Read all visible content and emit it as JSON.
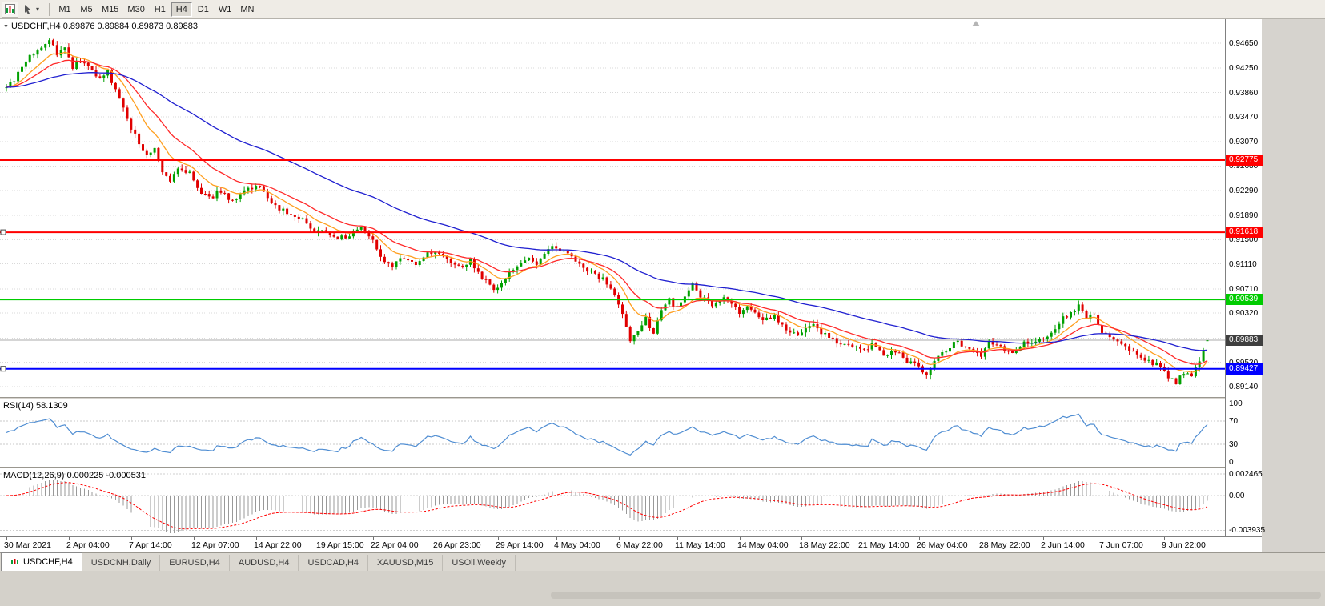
{
  "icons": {
    "dropdown_caret": "▾",
    "title_marker": "▼"
  },
  "toolbar": {
    "timeframes": [
      "M1",
      "M5",
      "M15",
      "M30",
      "H1",
      "H4",
      "D1",
      "W1",
      "MN"
    ],
    "active_timeframe": "H4"
  },
  "chart": {
    "title": "USDCHF,H4 0.89876 0.89884 0.89873 0.89883",
    "symbol": "USDCHF",
    "period": "H4",
    "open": "0.89876",
    "high": "0.89884",
    "low": "0.89873",
    "close": "0.89883",
    "current_price": "0.89883",
    "price_axis_labels": [
      "0.94650",
      "0.94250",
      "0.93860",
      "0.93470",
      "0.93070",
      "0.92680",
      "0.92290",
      "0.91890",
      "0.91500",
      "0.91110",
      "0.90710",
      "0.90320",
      "0.89920",
      "0.89530",
      "0.89140"
    ],
    "levels": [
      {
        "price": 0.92775,
        "label": "0.92775",
        "color": "#ff0000",
        "selected": false
      },
      {
        "price": 0.91618,
        "label": "0.91618",
        "color": "#ff0000",
        "selected": true
      },
      {
        "price": 0.90539,
        "label": "0.90539",
        "color": "#00cc00",
        "selected": false
      },
      {
        "price": 0.89427,
        "label": "0.89427",
        "color": "#0000ff",
        "selected": true
      }
    ]
  },
  "rsi_panel": {
    "label": "RSI(14) 58.1309",
    "value": 58.1309,
    "scale_labels": [
      "100",
      "70",
      "30",
      "0"
    ],
    "guides": [
      70,
      30
    ],
    "line_color": "#4f8dd2"
  },
  "macd_panel": {
    "label": "MACD(12,26,9) 0.000225 -0.000531",
    "values": [
      0.000225,
      -0.000531
    ],
    "scale_labels": [
      "0.002465",
      "0.00",
      "-0.003935"
    ],
    "histogram_color": "#999999",
    "signal_color": "#ff0000"
  },
  "tabs": [
    {
      "label": "USDCHF,H4",
      "active": true
    },
    {
      "label": "USDCNH,Daily",
      "active": false
    },
    {
      "label": "EURUSD,H4",
      "active": false
    },
    {
      "label": "AUDUSD,H4",
      "active": false
    },
    {
      "label": "USDCAD,H4",
      "active": false
    },
    {
      "label": "XAUUSD,M15",
      "active": false
    },
    {
      "label": "USOil,Weekly",
      "active": false
    }
  ],
  "chart_data": {
    "type": "candlestick",
    "symbol": "USDCHF",
    "timeframe": "H4",
    "ylim": [
      0.8901,
      0.9504
    ],
    "candle_count": 309,
    "up_color": "#00a000",
    "down_color": "#e00000",
    "last_candle": {
      "open": 0.89876,
      "high": 0.89884,
      "low": 0.89873,
      "close": 0.89883
    },
    "moving_averages": [
      {
        "period": 10,
        "color": "#ff9f1f"
      },
      {
        "period": 20,
        "color": "#ff2a2a"
      },
      {
        "period": 60,
        "color": "#1f1fd0"
      }
    ],
    "horizontal_levels": [
      0.92775,
      0.91618,
      0.90539,
      0.89427
    ],
    "time_ticks": [
      [
        0,
        "30 Mar 2021"
      ],
      [
        16,
        "2 Apr 04:00"
      ],
      [
        32,
        "7 Apr 14:00"
      ],
      [
        48,
        "12 Apr 07:00"
      ],
      [
        64,
        "14 Apr 22:00"
      ],
      [
        80,
        "19 Apr 15:00"
      ],
      [
        94,
        "22 Apr 04:00"
      ],
      [
        110,
        "26 Apr 23:00"
      ],
      [
        126,
        "29 Apr 14:00"
      ],
      [
        141,
        "4 May 04:00"
      ],
      [
        157,
        "6 May 22:00"
      ],
      [
        172,
        "11 May 14:00"
      ],
      [
        188,
        "14 May 04:00"
      ],
      [
        204,
        "18 May 22:00"
      ],
      [
        219,
        "21 May 14:00"
      ],
      [
        234,
        "26 May 04:00"
      ],
      [
        250,
        "28 May 22:00"
      ],
      [
        266,
        "2 Jun 14:00"
      ],
      [
        281,
        "7 Jun 07:00"
      ],
      [
        297,
        "9 Jun 22:00"
      ]
    ],
    "anchor_closes": [
      [
        0,
        0.9393
      ],
      [
        3,
        0.9415
      ],
      [
        6,
        0.9442
      ],
      [
        9,
        0.9461
      ],
      [
        11,
        0.947
      ],
      [
        13,
        0.9448
      ],
      [
        15,
        0.946
      ],
      [
        17,
        0.9428
      ],
      [
        20,
        0.9438
      ],
      [
        23,
        0.941
      ],
      [
        26,
        0.942
      ],
      [
        29,
        0.9372
      ],
      [
        32,
        0.933
      ],
      [
        34,
        0.9305
      ],
      [
        36,
        0.9282
      ],
      [
        38,
        0.9295
      ],
      [
        40,
        0.9258
      ],
      [
        42,
        0.9242
      ],
      [
        44,
        0.9268
      ],
      [
        47,
        0.9255
      ],
      [
        49,
        0.9232
      ],
      [
        52,
        0.9217
      ],
      [
        55,
        0.9228
      ],
      [
        58,
        0.921
      ],
      [
        61,
        0.9225
      ],
      [
        64,
        0.924
      ],
      [
        67,
        0.9216
      ],
      [
        70,
        0.92
      ],
      [
        73,
        0.9188
      ],
      [
        76,
        0.918
      ],
      [
        79,
        0.9162
      ],
      [
        82,
        0.9165
      ],
      [
        85,
        0.9152
      ],
      [
        88,
        0.9158
      ],
      [
        91,
        0.9166
      ],
      [
        94,
        0.9152
      ],
      [
        96,
        0.9125
      ],
      [
        99,
        0.9105
      ],
      [
        102,
        0.9122
      ],
      [
        105,
        0.911
      ],
      [
        108,
        0.9128
      ],
      [
        110,
        0.9132
      ],
      [
        113,
        0.912
      ],
      [
        116,
        0.9105
      ],
      [
        119,
        0.9115
      ],
      [
        122,
        0.9088
      ],
      [
        125,
        0.907
      ],
      [
        127,
        0.9082
      ],
      [
        130,
        0.9105
      ],
      [
        133,
        0.912
      ],
      [
        136,
        0.911
      ],
      [
        139,
        0.9132
      ],
      [
        141,
        0.914
      ],
      [
        144,
        0.9126
      ],
      [
        147,
        0.9112
      ],
      [
        150,
        0.9096
      ],
      [
        153,
        0.9086
      ],
      [
        156,
        0.9064
      ],
      [
        158,
        0.9028
      ],
      [
        160,
        0.899
      ],
      [
        162,
        0.9006
      ],
      [
        164,
        0.9022
      ],
      [
        166,
        0.9002
      ],
      [
        168,
        0.9038
      ],
      [
        170,
        0.9052
      ],
      [
        172,
        0.9042
      ],
      [
        174,
        0.9062
      ],
      [
        176,
        0.9076
      ],
      [
        178,
        0.9058
      ],
      [
        181,
        0.9046
      ],
      [
        184,
        0.9056
      ],
      [
        188,
        0.9035
      ],
      [
        191,
        0.9042
      ],
      [
        194,
        0.902
      ],
      [
        197,
        0.9026
      ],
      [
        200,
        0.9006
      ],
      [
        204,
        0.8998
      ],
      [
        207,
        0.9014
      ],
      [
        210,
        0.8996
      ],
      [
        213,
        0.8986
      ],
      [
        216,
        0.8978
      ],
      [
        219,
        0.8972
      ],
      [
        222,
        0.8981
      ],
      [
        225,
        0.8966
      ],
      [
        228,
        0.8972
      ],
      [
        231,
        0.8956
      ],
      [
        234,
        0.8946
      ],
      [
        236,
        0.8932
      ],
      [
        238,
        0.8958
      ],
      [
        241,
        0.8972
      ],
      [
        244,
        0.8986
      ],
      [
        247,
        0.8972
      ],
      [
        250,
        0.8966
      ],
      [
        252,
        0.8988
      ],
      [
        255,
        0.8978
      ],
      [
        258,
        0.897
      ],
      [
        261,
        0.8982
      ],
      [
        264,
        0.899
      ],
      [
        267,
        0.8996
      ],
      [
        270,
        0.9018
      ],
      [
        273,
        0.9035
      ],
      [
        275,
        0.9042
      ],
      [
        277,
        0.9022
      ],
      [
        279,
        0.9032
      ],
      [
        281,
        0.9002
      ],
      [
        284,
        0.8986
      ],
      [
        287,
        0.8976
      ],
      [
        290,
        0.8968
      ],
      [
        293,
        0.8956
      ],
      [
        296,
        0.8946
      ],
      [
        298,
        0.8928
      ],
      [
        300,
        0.8922
      ],
      [
        302,
        0.8938
      ],
      [
        304,
        0.893
      ],
      [
        306,
        0.8952
      ],
      [
        308,
        0.89883
      ]
    ],
    "rsi": {
      "period": 14,
      "current": 58.1309
    },
    "macd": {
      "fast": 12,
      "slow": 26,
      "signal_period": 9,
      "current": [
        0.000225,
        -0.000531
      ],
      "ylim": [
        -0.003935,
        0.002465
      ]
    }
  }
}
